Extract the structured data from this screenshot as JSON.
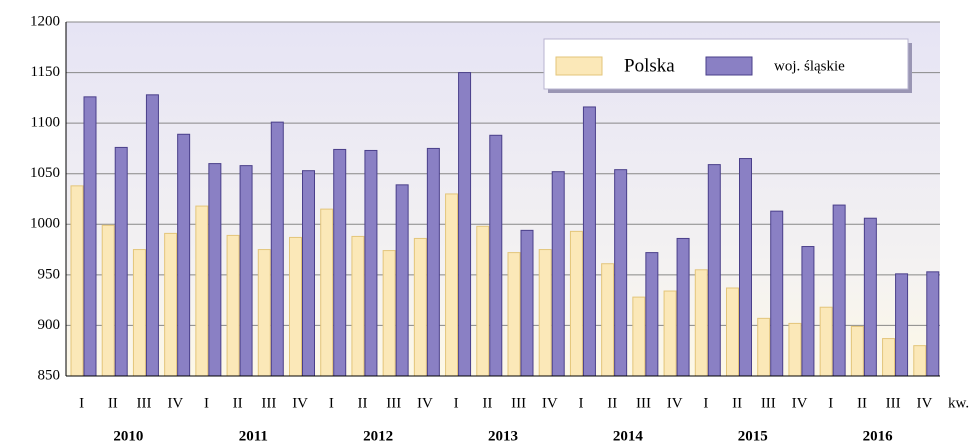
{
  "chart_data": {
    "type": "bar",
    "categories": [
      "I",
      "II",
      "III",
      "IV",
      "I",
      "II",
      "III",
      "IV",
      "I",
      "II",
      "III",
      "IV",
      "I",
      "II",
      "III",
      "IV",
      "I",
      "II",
      "III",
      "IV",
      "I",
      "II",
      "III",
      "IV",
      "I",
      "II",
      "III",
      "IV"
    ],
    "year_labels": [
      "2010",
      "2011",
      "2012",
      "2013",
      "2014",
      "2015",
      "2016"
    ],
    "x_label": "kw.",
    "series": [
      {
        "name": "Polska",
        "color": "#fbe8b8",
        "values": [
          1038,
          999,
          975,
          991,
          1018,
          989,
          975,
          987,
          1015,
          988,
          974,
          986,
          1030,
          998,
          972,
          975,
          993,
          961,
          928,
          934,
          955,
          937,
          907,
          902,
          918,
          899,
          887,
          880
        ]
      },
      {
        "name": "woj. śląskie",
        "color": "#8a80c4",
        "values": [
          1126,
          1076,
          1128,
          1089,
          1060,
          1058,
          1101,
          1053,
          1074,
          1073,
          1039,
          1075,
          1150,
          1088,
          994,
          1052,
          1116,
          1054,
          972,
          986,
          1059,
          1065,
          1013,
          978,
          1019,
          1006,
          951,
          953
        ]
      }
    ],
    "ylim": [
      850,
      1200
    ],
    "yticks": [
      850,
      900,
      950,
      1000,
      1050,
      1100,
      1150,
      1200
    ],
    "grid": true,
    "legend": "upper right"
  }
}
